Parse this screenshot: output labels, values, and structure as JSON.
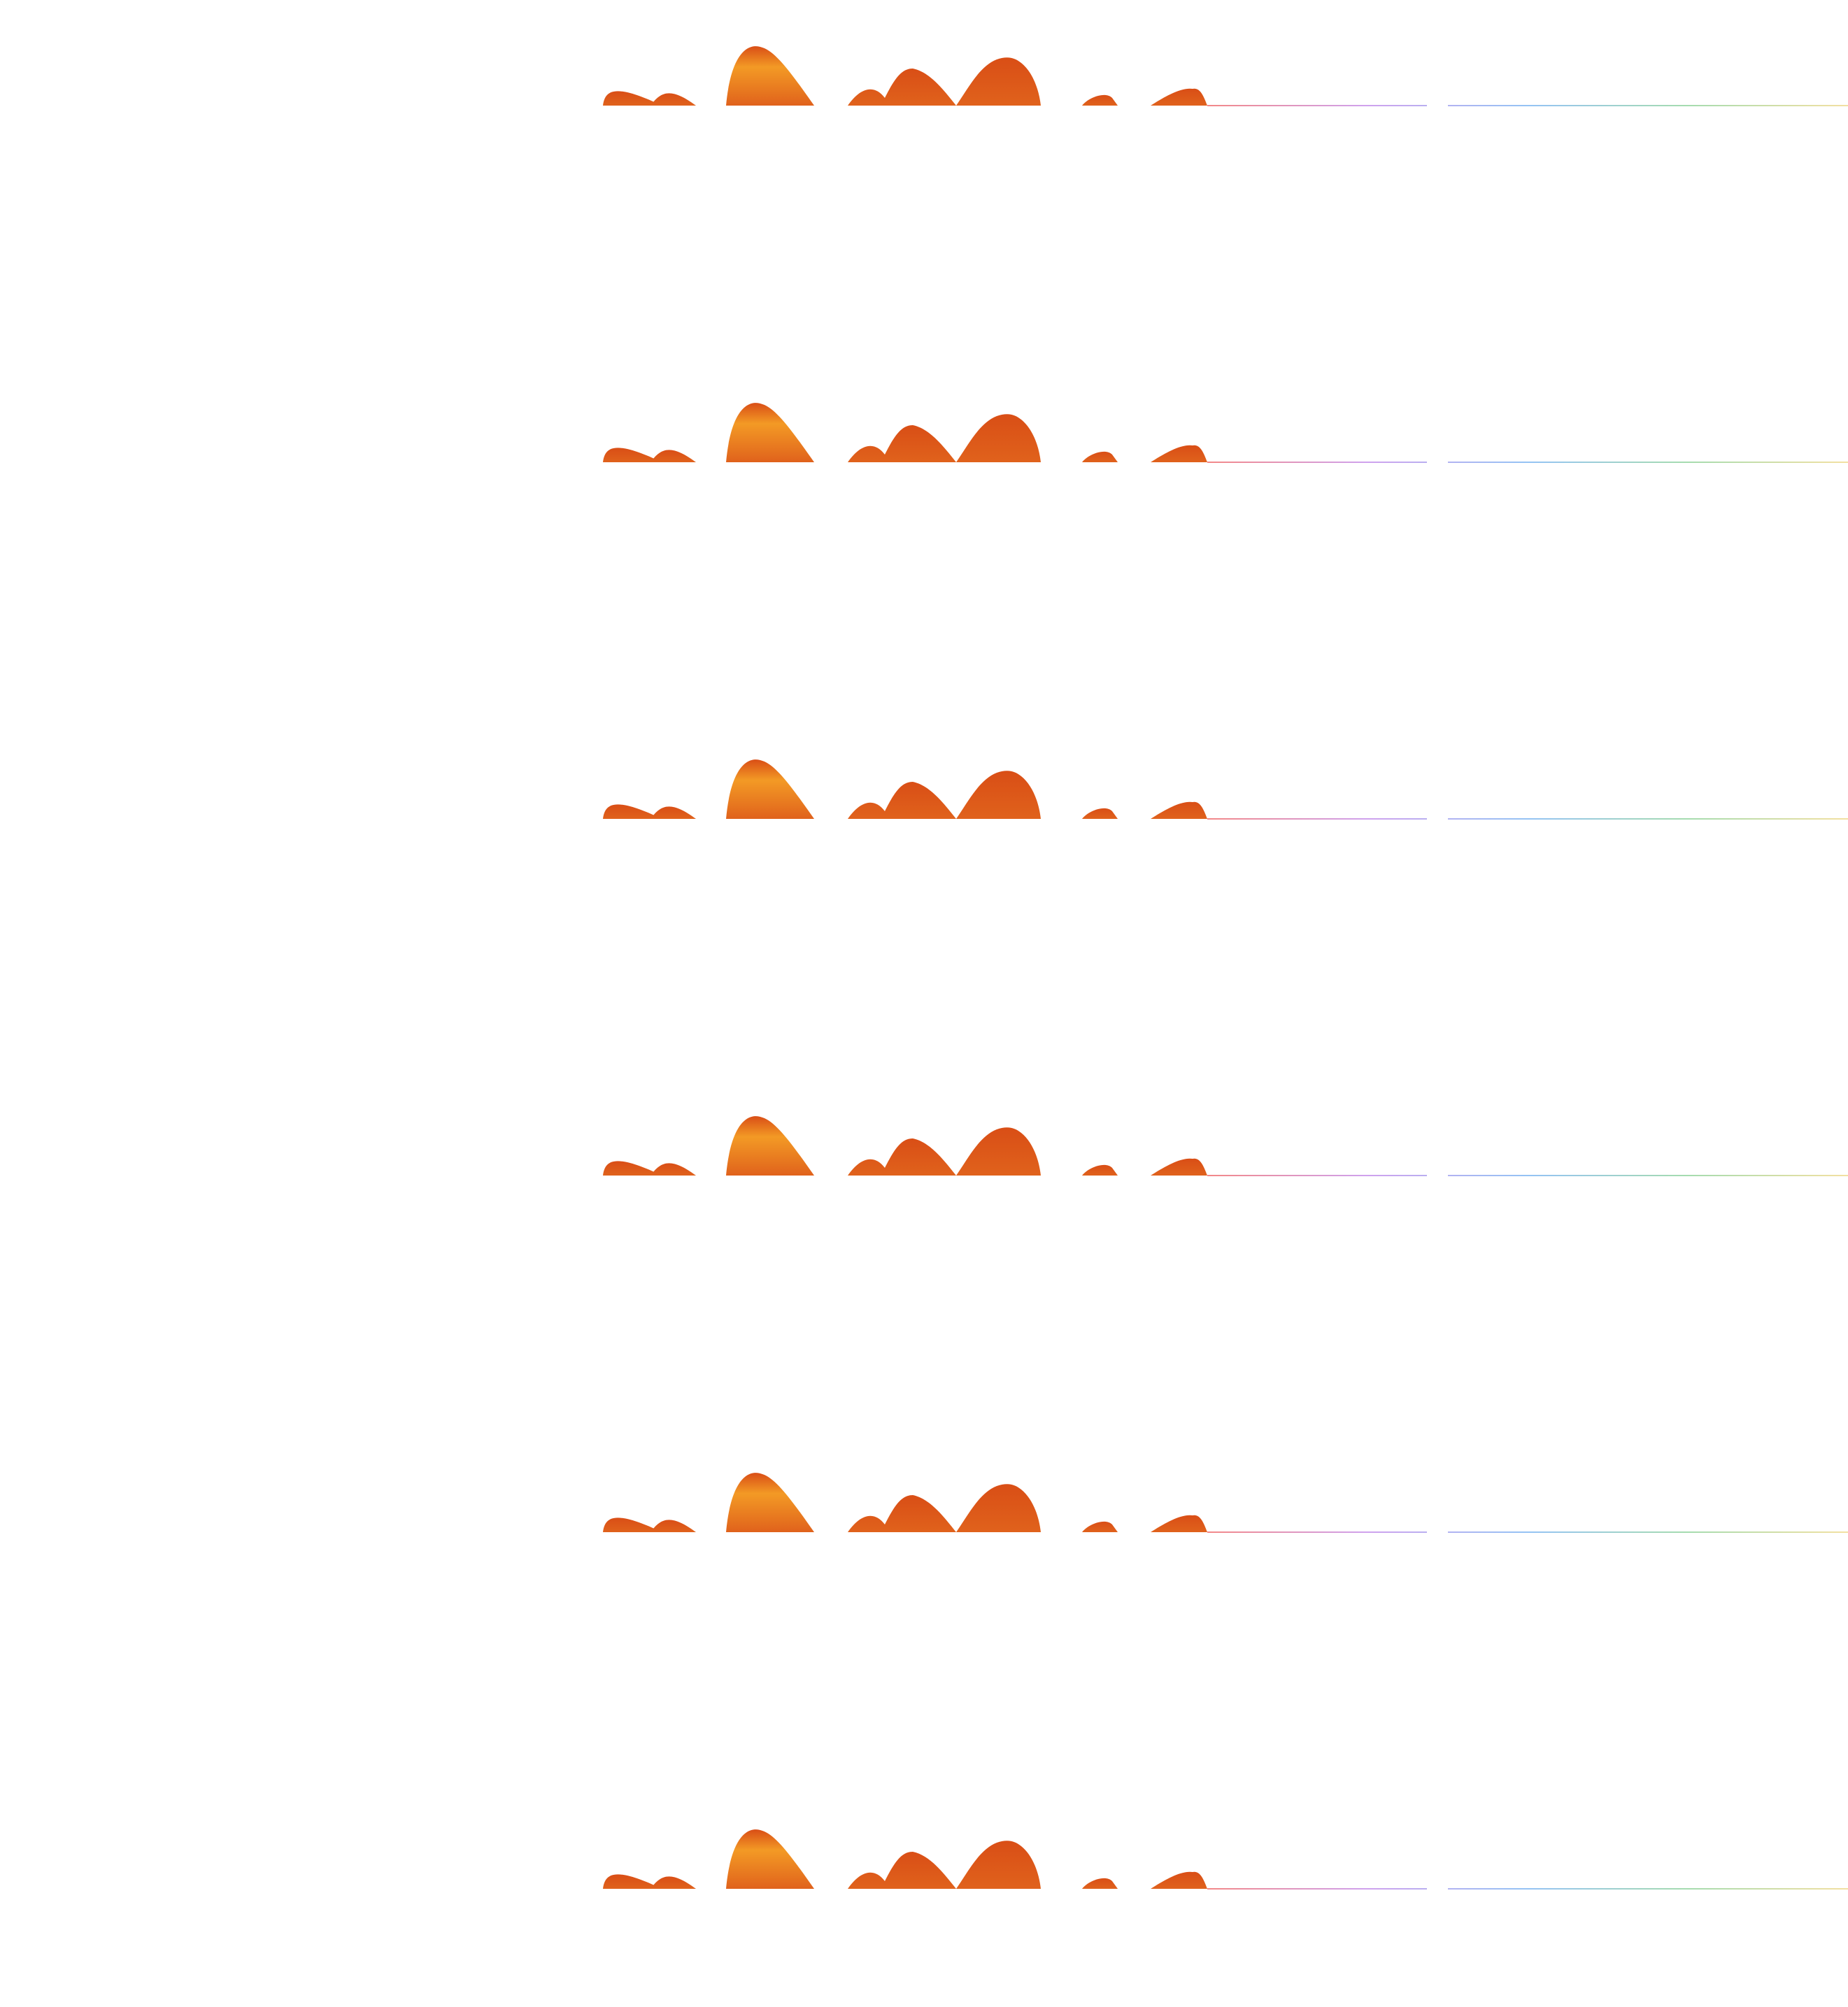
{
  "scene": {
    "description_visible_text": "",
    "repeat_count": 6,
    "motif": "orange-hills-strip",
    "colors": {
      "background": "#ffffff",
      "hill_dark": "#D94E16",
      "hill_mid": "#E0621C",
      "hill_light": "#F39A25",
      "line_red": "#F06A6A",
      "line_purple": "#C38BEA",
      "line_blue": "#7AB4F2",
      "line_green": "#8FD39B",
      "line_yellow": "#F0D98A"
    }
  }
}
